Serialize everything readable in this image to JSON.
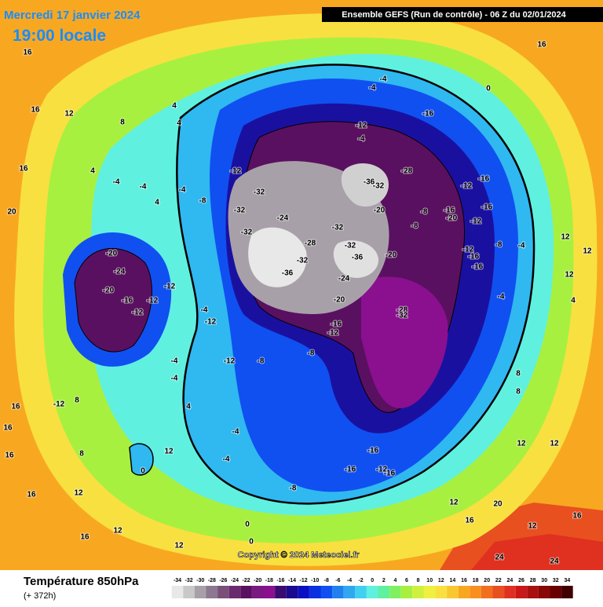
{
  "header": {
    "date": "Mercredi 17 janvier 2024",
    "time": "19:00 locale",
    "model": "Ensemble GEFS  (Run de contrôle)  -  06 Z du 02/01/2024"
  },
  "map": {
    "copyright": "Copyright © 2024 Meteociel.fr",
    "contour_labels": [
      16,
      16,
      12,
      4,
      4,
      8,
      16,
      20,
      4,
      -4,
      -4,
      -4,
      -8,
      4,
      -20,
      -24,
      -20,
      -16,
      -12,
      -12,
      -12,
      -4,
      -12,
      -12,
      -8,
      -8,
      -4,
      -4,
      4,
      -4,
      -4,
      0,
      12,
      8,
      12,
      12,
      -32,
      -32,
      -24,
      -32,
      -28,
      -32,
      -36,
      -32,
      -32,
      -36,
      -36,
      -32,
      -20,
      -28,
      -20,
      -24,
      -20,
      -16,
      -12,
      -28,
      -32,
      -12,
      -4,
      -16,
      -4,
      -4,
      0,
      16,
      -12,
      -8,
      -8,
      -16,
      -20,
      -12,
      -16,
      -16,
      -12,
      -12,
      -16,
      -8,
      -4,
      -4,
      -16,
      -16,
      -12,
      -16,
      -16,
      -8,
      12,
      16,
      20,
      12,
      24,
      24,
      16,
      8,
      8,
      12,
      12,
      12,
      12,
      12,
      4,
      16,
      16,
      16,
      16,
      16,
      12,
      -12,
      8,
      0,
      0
    ]
  },
  "legend": {
    "title": "Température 850hPa",
    "subtitle": "(+ 372h)",
    "values": [
      -34,
      -32,
      -30,
      -28,
      -26,
      -24,
      -22,
      -20,
      -18,
      -16,
      -14,
      -12,
      -10,
      -8,
      -6,
      -4,
      -2,
      0,
      2,
      4,
      6,
      8,
      10,
      12,
      14,
      16,
      18,
      20,
      22,
      24,
      26,
      28,
      30,
      32,
      34
    ],
    "colors": [
      "#e8e8e8",
      "#c8c8c8",
      "#a8a0a8",
      "#8c7890",
      "#785078",
      "#6a2a6e",
      "#5a1060",
      "#7a1a80",
      "#8a1090",
      "#3a0a70",
      "#1a0a90",
      "#0a10c0",
      "#0a30e0",
      "#1050f0",
      "#2080f0",
      "#30a8f0",
      "#40d0f0",
      "#60f0e0",
      "#60f0a0",
      "#80f060",
      "#a8f040",
      "#d0f040",
      "#f0f040",
      "#f8e040",
      "#f8c830",
      "#f8a820",
      "#f89020",
      "#f07020",
      "#e85020",
      "#e03020",
      "#c81818",
      "#a81010",
      "#880808",
      "#680000",
      "#400000"
    ]
  }
}
